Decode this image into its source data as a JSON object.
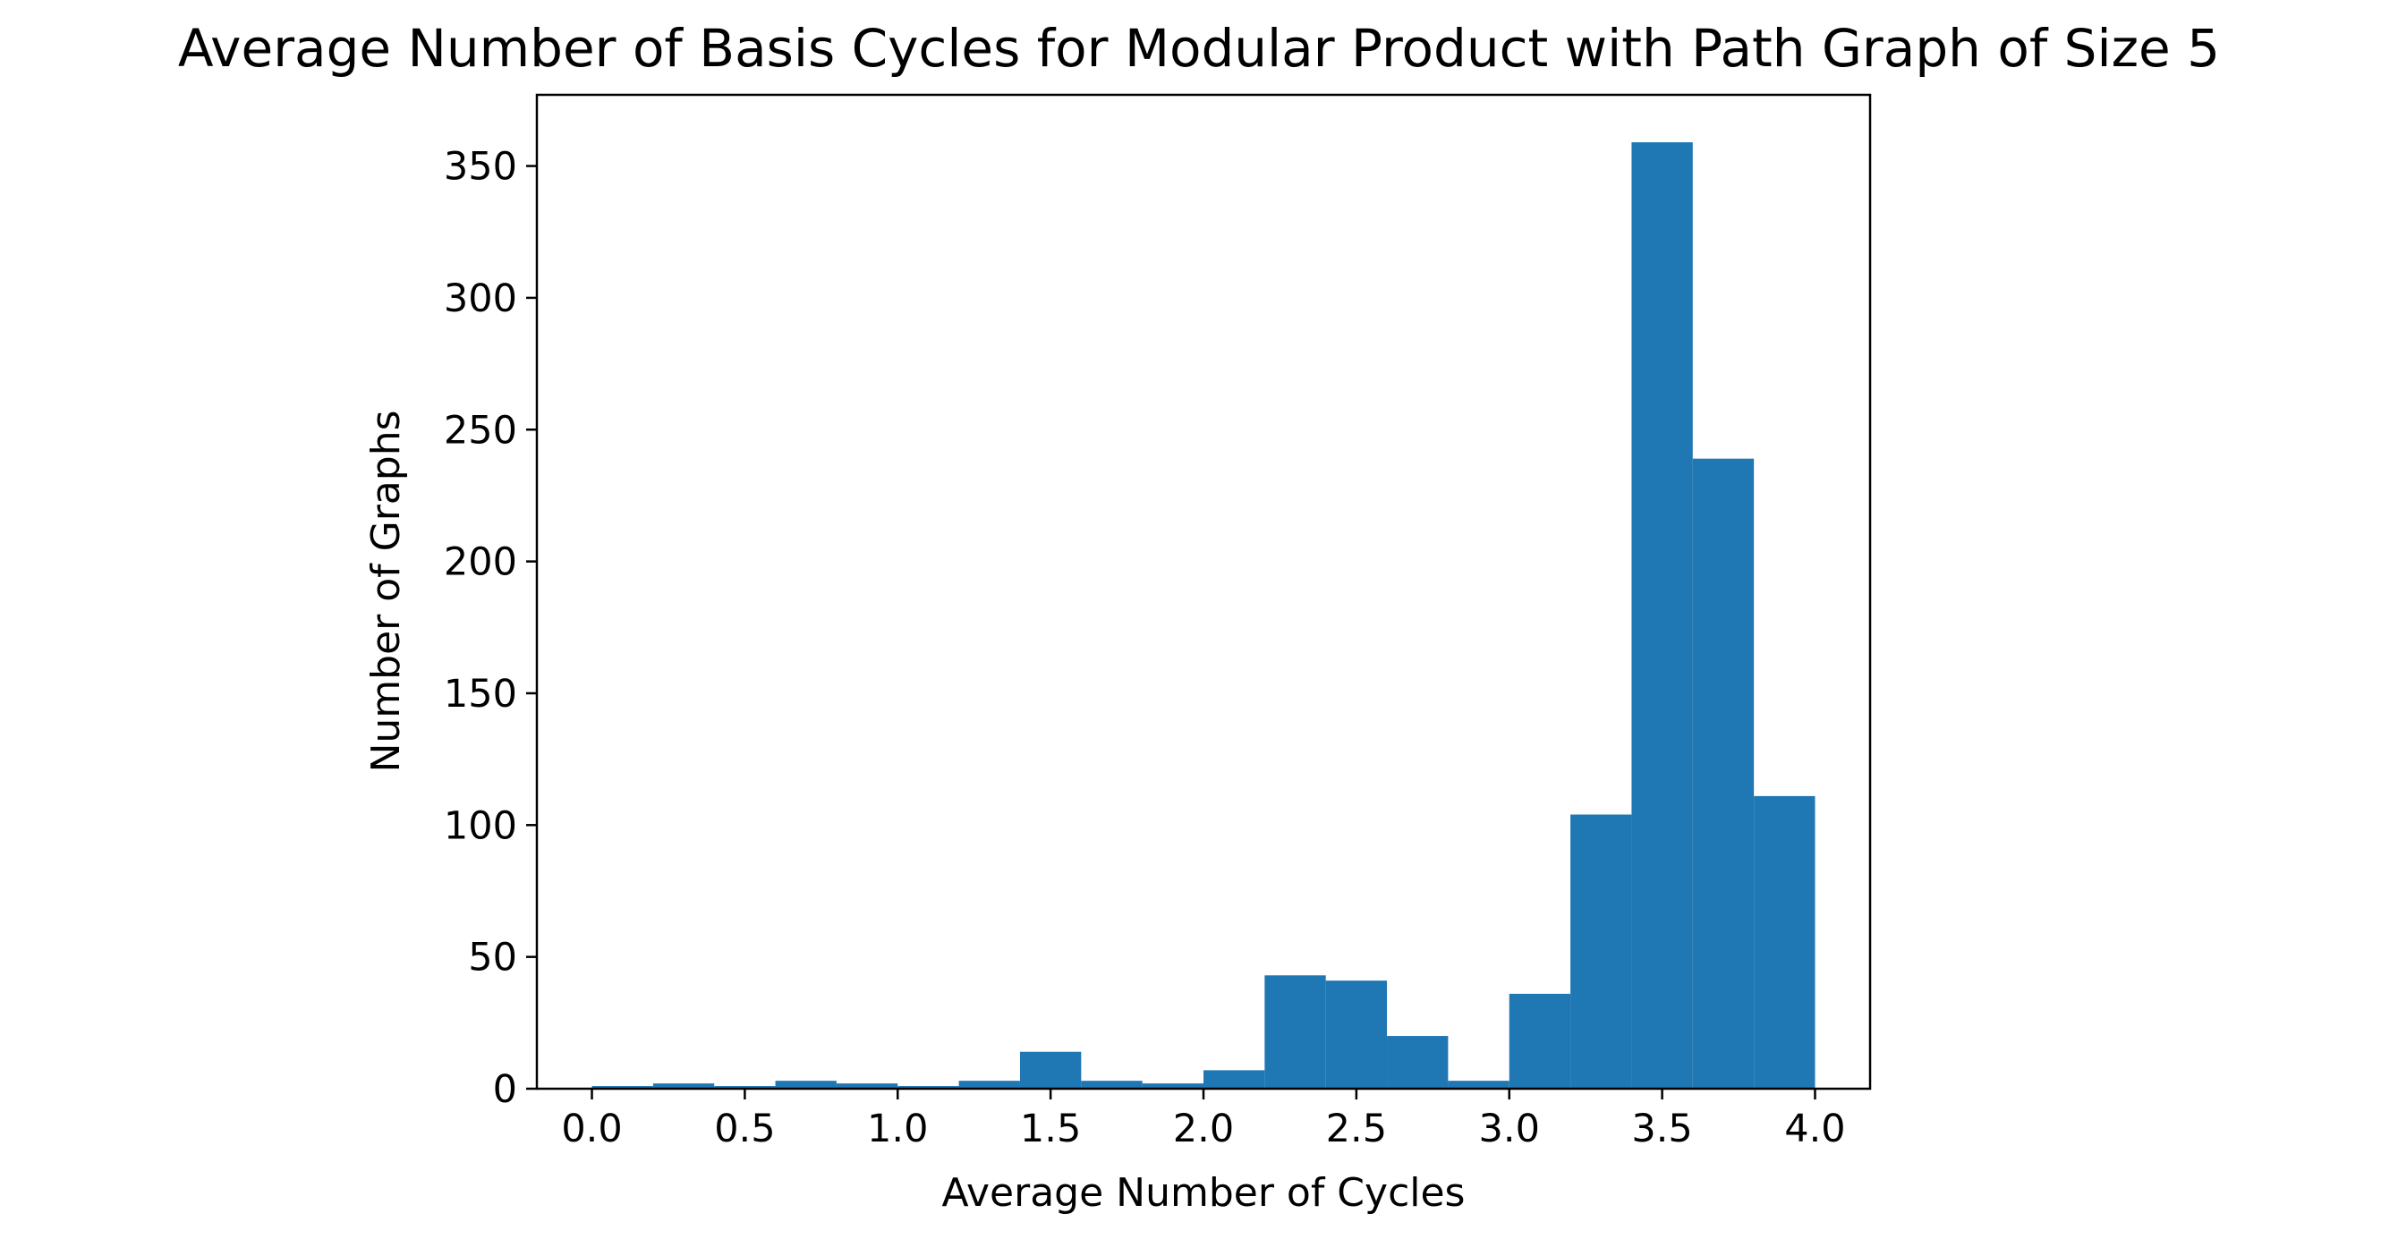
{
  "chart_data": {
    "type": "bar",
    "subtype": "histogram",
    "title": "Average Number of Basis Cycles for Modular Product with Path Graph of Size 5",
    "xlabel": "Average Number of Cycles",
    "ylabel": "Number of Graphs",
    "xlim": [
      -0.18,
      4.18
    ],
    "ylim": [
      0,
      377
    ],
    "xticks": [
      0.0,
      0.5,
      1.0,
      1.5,
      2.0,
      2.5,
      3.0,
      3.5,
      4.0
    ],
    "xtick_labels": [
      "0.0",
      "0.5",
      "1.0",
      "1.5",
      "2.0",
      "2.5",
      "3.0",
      "3.5",
      "4.0"
    ],
    "yticks": [
      0,
      50,
      100,
      150,
      200,
      250,
      300,
      350
    ],
    "ytick_labels": [
      "0",
      "50",
      "100",
      "150",
      "200",
      "250",
      "300",
      "350"
    ],
    "bin_edges": [
      0.0,
      0.2,
      0.4,
      0.6,
      0.8,
      1.0,
      1.2,
      1.4,
      1.6,
      1.8,
      2.0,
      2.2,
      2.4,
      2.6,
      2.8,
      3.0,
      3.2,
      3.4,
      3.6,
      3.8,
      4.0
    ],
    "bar_left_edges": [
      0.0,
      0.2,
      0.4,
      0.6,
      0.8,
      1.0,
      1.2,
      1.4,
      1.6,
      1.8,
      2.0,
      2.2,
      2.4,
      2.6,
      2.8,
      3.0,
      3.2,
      3.4,
      3.6,
      3.8
    ],
    "bar_width": 0.2,
    "values": [
      1,
      2,
      1,
      3,
      2,
      1,
      3,
      14,
      3,
      2,
      7,
      43,
      41,
      20,
      3,
      36,
      104,
      359,
      239,
      111
    ],
    "bar_color": "#1f77b4",
    "grid": false,
    "legend": "none"
  }
}
